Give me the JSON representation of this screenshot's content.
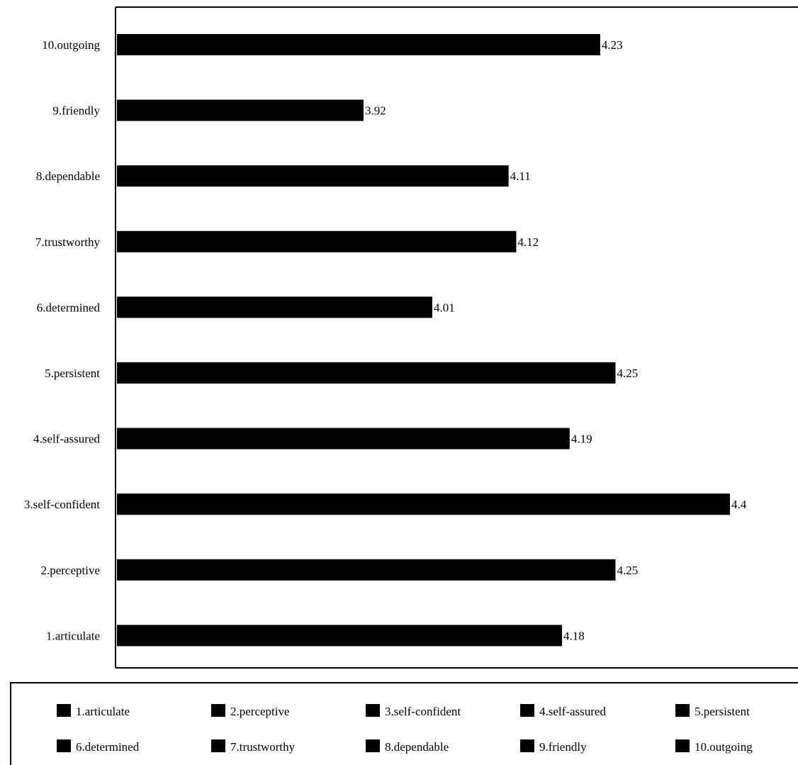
{
  "chart_data": {
    "type": "bar",
    "orientation": "horizontal",
    "categories": [
      "1.articulate",
      "2.perceptive",
      "3.self-confident",
      "4.self-assured",
      "5.persistent",
      "6.determined",
      "7.trustworthy",
      "8.dependable",
      "9.friendly",
      "10.outgoing"
    ],
    "values": [
      4.18,
      4.25,
      4.4,
      4.19,
      4.25,
      4.01,
      4.12,
      4.11,
      3.92,
      4.23
    ],
    "data_labels": [
      "4.18",
      "4.25",
      "4.4",
      "4.19",
      "4.25",
      "4.01",
      "4.12",
      "4.11",
      "3.92",
      "4.23"
    ],
    "title": "",
    "xlabel": "",
    "ylabel": "",
    "xlim": [
      3.6,
      4.6
    ],
    "grid": false,
    "bar_color": "#000000",
    "legend": {
      "placement": "bottom",
      "entries": [
        "1.articulate",
        "2.perceptive",
        "3.self-confident",
        "4.self-assured",
        "5.persistent",
        "6.determined",
        "7.trustworthy",
        "8.dependable",
        "9.friendly",
        "10.outgoing"
      ]
    }
  }
}
